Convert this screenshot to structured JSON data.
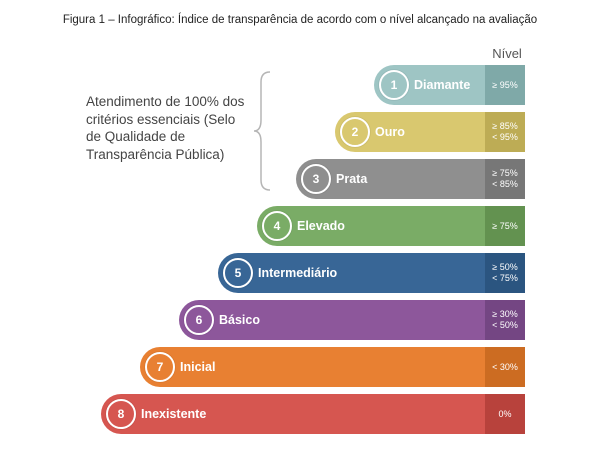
{
  "title": "Figura 1 – Infográfico: Índice de transparência de acordo com o nível alcançado na avaliação",
  "nivel_header": "Nível",
  "annotation": "Atendimento de 100% dos critérios essenciais (Selo de Qualidade de Transparência Pública)",
  "levels": [
    {
      "num": "1",
      "name": "Diamante",
      "range": [
        "≥ 95%"
      ],
      "color": "#9ec5c4",
      "pct_color": "#7fa9a8"
    },
    {
      "num": "2",
      "name": "Ouro",
      "range": [
        "≥ 85%",
        "< 95%"
      ],
      "color": "#d9c86f",
      "pct_color": "#bdac55"
    },
    {
      "num": "3",
      "name": "Prata",
      "range": [
        "≥ 75%",
        "< 85%"
      ],
      "color": "#8f8f8f",
      "pct_color": "#777777"
    },
    {
      "num": "4",
      "name": "Elevado",
      "range": [
        "≥ 75%"
      ],
      "color": "#7aac66",
      "pct_color": "#639250"
    },
    {
      "num": "5",
      "name": "Intermediário",
      "range": [
        "≥ 50%",
        "< 75%"
      ],
      "color": "#386696",
      "pct_color": "#2b5580"
    },
    {
      "num": "6",
      "name": "Básico",
      "range": [
        "≥ 30%",
        "< 50%"
      ],
      "color": "#8d579b",
      "pct_color": "#744683"
    },
    {
      "num": "7",
      "name": "Inicial",
      "range": [
        "< 30%"
      ],
      "color": "#e88032",
      "pct_color": "#cc6c22"
    },
    {
      "num": "8",
      "name": "Inexistente",
      "range": [
        "0%"
      ],
      "color": "#d65650",
      "pct_color": "#b8423c"
    }
  ]
}
